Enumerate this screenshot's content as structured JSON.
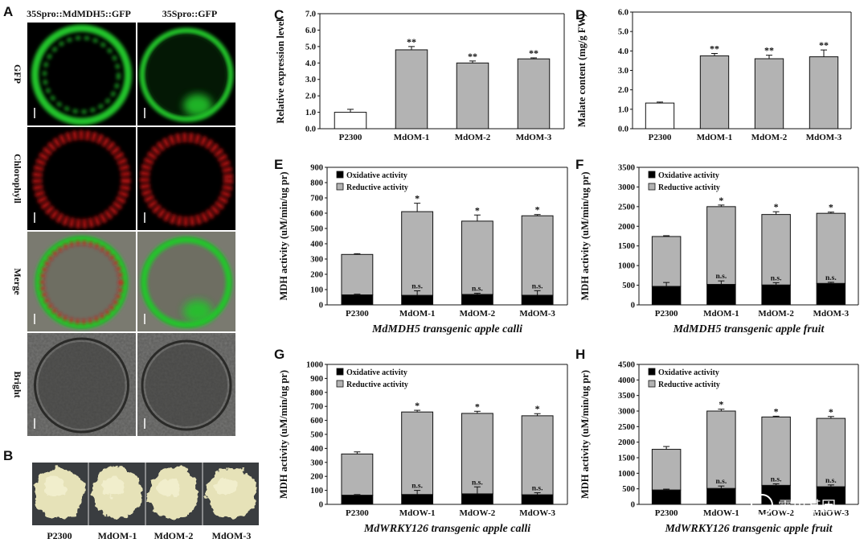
{
  "panels": {
    "A": {
      "label": "A",
      "columns": [
        "35Spro::MdMDH5::GFP",
        "35Spro::GFP"
      ],
      "rows": [
        "GFP",
        "Chlorophyll",
        "Merge",
        "Bright"
      ]
    },
    "B": {
      "label": "B",
      "samples": [
        "P2300",
        "MdOM-1",
        "MdOM-2",
        "MdOM-3"
      ]
    }
  },
  "colors": {
    "gray_bar": "#b3b3b3",
    "black_bar": "#000000",
    "white_bar": "#ffffff",
    "gfp": "#22c42a",
    "chlorophyll": "#d81818"
  },
  "watermark": "霖思基因",
  "chart_data": [
    {
      "id": "C",
      "label": "C",
      "type": "bar",
      "categories": [
        "P2300",
        "MdOM-1",
        "MdOM-2",
        "MdOM-3"
      ],
      "values": [
        1.0,
        4.8,
        4.0,
        4.25
      ],
      "errors": [
        0.18,
        0.2,
        0.12,
        0.06
      ],
      "bar_colors": [
        "#ffffff",
        "#b3b3b3",
        "#b3b3b3",
        "#b3b3b3"
      ],
      "sig": [
        "",
        "**",
        "**",
        "**"
      ],
      "ylabel": "Relative expression level",
      "ylim": [
        0,
        7
      ],
      "yticks": [
        0,
        1,
        2,
        3,
        4,
        5,
        6,
        7
      ],
      "decimals": 1,
      "xlabel": ""
    },
    {
      "id": "D",
      "label": "D",
      "type": "bar",
      "categories": [
        "P2300",
        "MdOM-1",
        "MdOM-2",
        "MdOM-3"
      ],
      "values": [
        1.32,
        3.75,
        3.6,
        3.7
      ],
      "errors": [
        0.05,
        0.12,
        0.18,
        0.35
      ],
      "bar_colors": [
        "#ffffff",
        "#b3b3b3",
        "#b3b3b3",
        "#b3b3b3"
      ],
      "sig": [
        "",
        "**",
        "**",
        "**"
      ],
      "ylabel": "Malate content (mg/g FW)",
      "ylim": [
        0,
        6
      ],
      "yticks": [
        0,
        1,
        2,
        3,
        4,
        5,
        6
      ],
      "decimals": 1,
      "xlabel": ""
    },
    {
      "id": "E",
      "label": "E",
      "type": "stacked_bar",
      "categories": [
        "P2300",
        "MdOM-1",
        "MdOM-2",
        "MdOM-3"
      ],
      "series": [
        {
          "name": "Oxidative activity",
          "values": [
            65,
            62,
            68,
            63
          ],
          "errors": [
            5,
            30,
            8,
            30
          ],
          "sig": [
            "",
            "n.s.",
            "n.s.",
            "n.s."
          ]
        },
        {
          "name": "Reductive activity",
          "values": [
            265,
            548,
            480,
            520
          ],
          "errors": [
            5,
            55,
            40,
            8
          ],
          "sig": [
            "",
            "*",
            "*",
            "*"
          ]
        }
      ],
      "ylabel": "MDH activity (uM/min/ug pr)",
      "ylim": [
        0,
        900
      ],
      "yticks": [
        0,
        100,
        200,
        300,
        400,
        500,
        600,
        700,
        800,
        900
      ],
      "decimals": 0,
      "xlabel_gene": "MdMDH5",
      "xlabel_rest": " transgenic apple calli"
    },
    {
      "id": "F",
      "label": "F",
      "type": "stacked_bar",
      "categories": [
        "P2300",
        "MdOM-1",
        "MdOM-2",
        "MdOM-3"
      ],
      "series": [
        {
          "name": "Oxidative activity",
          "values": [
            470,
            520,
            505,
            545
          ],
          "errors": [
            100,
            90,
            60,
            30
          ],
          "sig": [
            "",
            "n.s.",
            "n.s.",
            "n.s."
          ]
        },
        {
          "name": "Reductive activity",
          "values": [
            1270,
            1980,
            1795,
            1785
          ],
          "errors": [
            20,
            40,
            70,
            30
          ],
          "sig": [
            "",
            "*",
            "*",
            "*"
          ]
        }
      ],
      "ylabel": "MDH activity (uM/min/ug pr)",
      "ylim": [
        0,
        3500
      ],
      "yticks": [
        0,
        500,
        1000,
        1500,
        2000,
        2500,
        3000,
        3500
      ],
      "decimals": 0,
      "xlabel_gene": "MdMDH5",
      "xlabel_rest": " transgenic apple fruit"
    },
    {
      "id": "G",
      "label": "G",
      "type": "stacked_bar",
      "categories": [
        "P2300",
        "MdOW-1",
        "MdOW-2",
        "MdOW-3"
      ],
      "series": [
        {
          "name": "Oxidative activity",
          "values": [
            65,
            70,
            75,
            68
          ],
          "errors": [
            5,
            30,
            50,
            15
          ],
          "sig": [
            "",
            "n.s.",
            "n.s.",
            "n.s."
          ]
        },
        {
          "name": "Reductive activity",
          "values": [
            295,
            590,
            575,
            565
          ],
          "errors": [
            15,
            12,
            15,
            15
          ],
          "sig": [
            "",
            "*",
            "*",
            "*"
          ]
        }
      ],
      "ylabel": "MDH activity (uM/min/ug pr)",
      "ylim": [
        0,
        1000
      ],
      "yticks": [
        0,
        100,
        200,
        300,
        400,
        500,
        600,
        700,
        800,
        900,
        1000
      ],
      "decimals": 0,
      "xlabel_gene": "MdWRKY126",
      "xlabel_rest": " transgenic apple calli"
    },
    {
      "id": "H",
      "label": "H",
      "type": "stacked_bar",
      "categories": [
        "P2300",
        "MdOW-1",
        "MdOW-2",
        "MdOW-3"
      ],
      "series": [
        {
          "name": "Oxidative activity",
          "values": [
            460,
            510,
            610,
            565
          ],
          "errors": [
            30,
            80,
            50,
            60
          ],
          "sig": [
            "",
            "n.s.",
            "n.s.",
            "n.s."
          ]
        },
        {
          "name": "Reductive activity",
          "values": [
            1310,
            2490,
            2200,
            2200
          ],
          "errors": [
            90,
            60,
            25,
            60
          ],
          "sig": [
            "",
            "*",
            "*",
            "*"
          ]
        }
      ],
      "ylabel": "MDH activity (uM/min/ug pr)",
      "ylim": [
        0,
        4500
      ],
      "yticks": [
        0,
        500,
        1000,
        1500,
        2000,
        2500,
        3000,
        3500,
        4000,
        4500
      ],
      "decimals": 0,
      "xlabel_gene": "MdWRKY126",
      "xlabel_rest": " transgenic apple fruit"
    }
  ]
}
